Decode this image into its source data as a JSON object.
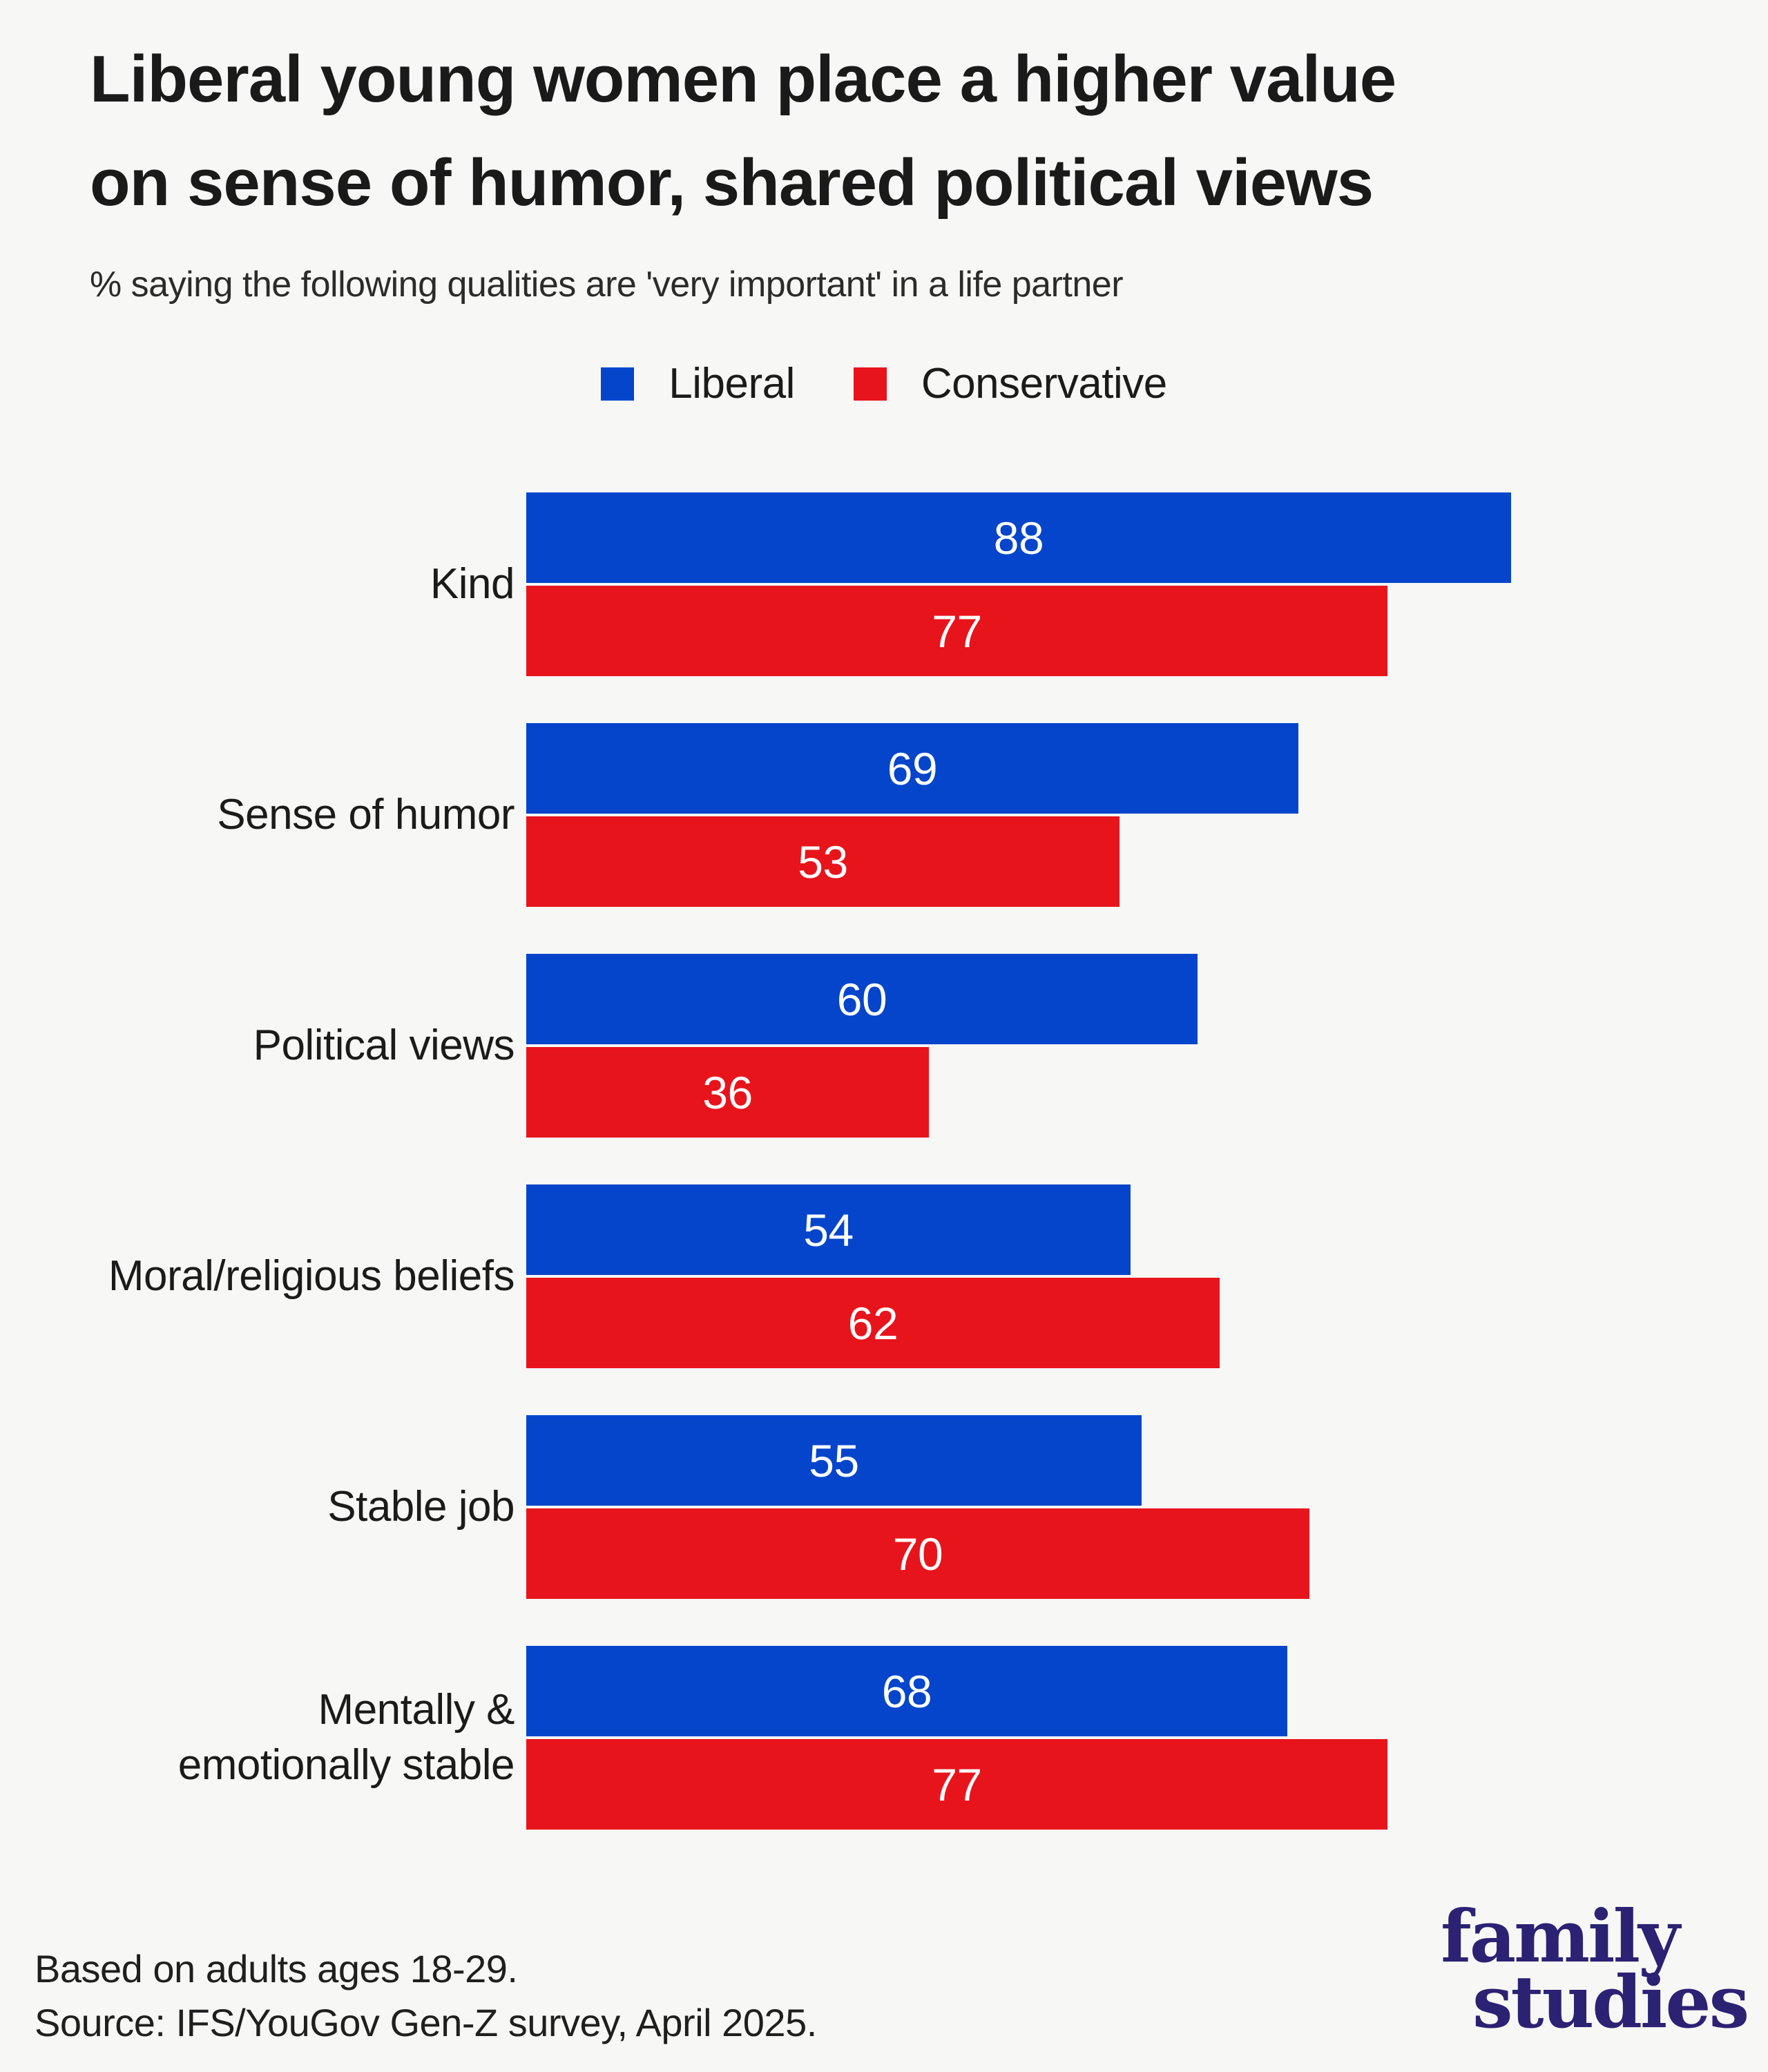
{
  "title": {
    "line1": "Liberal young women place a higher value",
    "line2": "on sense of humor, shared political views"
  },
  "subtitle": "% saying the following qualities are 'very important' in a life partner",
  "legend": {
    "items": [
      {
        "label": "Liberal",
        "color": "#0445CB"
      },
      {
        "label": "Conservative",
        "color": "#E8141C"
      }
    ]
  },
  "chart_data": {
    "type": "bar",
    "orientation": "horizontal",
    "title": "Liberal young women place a higher value on sense of humor, shared political views",
    "subtitle": "% saying the following qualities are 'very important' in a life partner",
    "categories": [
      "Kind",
      "Sense of humor",
      "Political views",
      "Moral/religious beliefs",
      "Stable job",
      "Mentally & emotionally stable"
    ],
    "category_label_lines": [
      [
        "Kind"
      ],
      [
        "Sense of humor"
      ],
      [
        "Political views"
      ],
      [
        "Moral/religious beliefs"
      ],
      [
        "Stable job"
      ],
      [
        "Mentally &",
        "emotionally stable"
      ]
    ],
    "series": [
      {
        "name": "Liberal",
        "color": "#0445CB",
        "values": [
          88,
          69,
          60,
          54,
          55,
          68
        ]
      },
      {
        "name": "Conservative",
        "color": "#E8141C",
        "values": [
          77,
          53,
          36,
          62,
          70,
          77
        ]
      }
    ],
    "xlim": [
      0,
      100
    ],
    "grid": false,
    "axis_labels": "none",
    "legend_position": "top-center",
    "value_labels": "inside-center-white",
    "pixels_per_unit": 16.2
  },
  "footer": {
    "line1": "Based on adults ages 18-29.",
    "line2": "Source: IFS/YouGov Gen-Z survey, April 2025."
  },
  "logo": {
    "line1": "family",
    "line2": "studies",
    "color": "#2B2273"
  },
  "colors": {
    "background": "#F7F7F5",
    "liberal": "#0445CB",
    "conservative": "#E8141C",
    "title_text": "#1A1A1A",
    "body_text": "#1B1B1B",
    "value_text": "#FFFFFF"
  }
}
